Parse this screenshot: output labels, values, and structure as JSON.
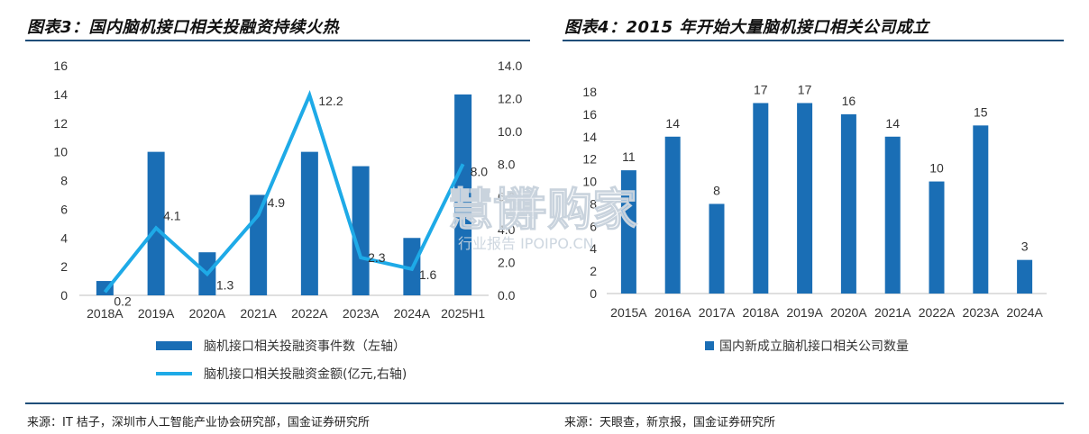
{
  "left_panel": {
    "title": "图表3：国内脑机接口相关投融资持续火热",
    "source": "来源：IT 桔子，深圳市人工智能产业协会研究部，国金证券研究所"
  },
  "right_panel": {
    "title": "图表4：2015 年开始大量脑机接口相关公司成立",
    "source": "来源：天眼查，新京报，国金证券研究所"
  },
  "watermark": {
    "main": "慧博",
    "brand": "并购家",
    "sub": "行业报告 IPOIPO.CN"
  },
  "colors": {
    "bar": "#1a6eb5",
    "line": "#1eaae7",
    "rule": "#1f4e79"
  },
  "chart_data": [
    {
      "type": "bar",
      "categories": [
        "2018A",
        "2019A",
        "2020A",
        "2021A",
        "2022A",
        "2023A",
        "2024A",
        "2025H1"
      ],
      "series": [
        {
          "name": "脑机接口相关投融资事件数（左轴）",
          "type": "bar",
          "axis": "left",
          "values": [
            1,
            10,
            3,
            7,
            10,
            9,
            4,
            14
          ]
        },
        {
          "name": "脑机接口相关投融资金额(亿元,右轴)",
          "type": "line",
          "axis": "right",
          "values": [
            0.2,
            4.1,
            1.3,
            4.9,
            12.2,
            2.3,
            1.6,
            8.0
          ],
          "labels": [
            "0.2",
            "4.1",
            "1.3",
            "4.9",
            "12.2",
            "2.3",
            "1.6",
            "8.0"
          ]
        }
      ],
      "y_left": {
        "range": [
          0,
          16
        ],
        "ticks": [
          "0",
          "2",
          "4",
          "6",
          "8",
          "10",
          "12",
          "14",
          "16"
        ]
      },
      "y_right": {
        "range": [
          0,
          14
        ],
        "ticks": [
          "0.0",
          "2.0",
          "4.0",
          "6.0",
          "8.0",
          "10.0",
          "12.0",
          "14.0"
        ]
      },
      "grid": false,
      "legend": "bottom"
    },
    {
      "type": "bar",
      "categories": [
        "2015A",
        "2016A",
        "2017A",
        "2018A",
        "2019A",
        "2020A",
        "2021A",
        "2022A",
        "2023A",
        "2024A"
      ],
      "series": [
        {
          "name": "国内新成立脑机接口相关公司数量",
          "values": [
            11,
            14,
            8,
            17,
            17,
            16,
            14,
            10,
            15,
            3
          ]
        }
      ],
      "y": {
        "range": [
          0,
          18
        ],
        "ticks": [
          "0",
          "2",
          "4",
          "6",
          "8",
          "10",
          "12",
          "14",
          "16",
          "18"
        ]
      },
      "grid": false,
      "legend": "bottom"
    }
  ]
}
